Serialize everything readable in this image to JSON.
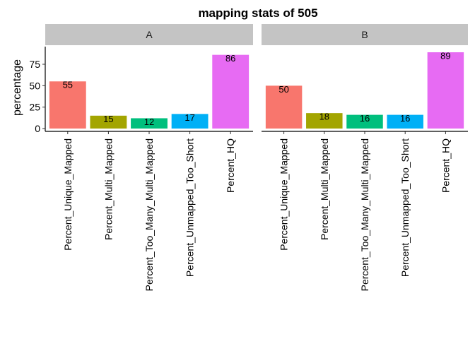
{
  "chart_data": {
    "type": "bar",
    "title": "mapping stats of 505",
    "xlabel": "",
    "ylabel": "percentage",
    "ylim": [
      0,
      89
    ],
    "yticks": [
      0,
      25,
      50,
      75
    ],
    "grid": false,
    "legend": "none",
    "categories": [
      "Percent_Unique_Mapped",
      "Percent_Multi_Mapped",
      "Percent_Too_Many_Multi_Mapped",
      "Percent_Unmapped_Too_Short",
      "Percent_HQ"
    ],
    "colors": [
      "#F8766D",
      "#A3A500",
      "#00BF7D",
      "#00B0F6",
      "#E76BF3"
    ],
    "panels": [
      {
        "label": "A",
        "values": [
          55,
          15,
          12,
          17,
          86
        ]
      },
      {
        "label": "B",
        "values": [
          50,
          18,
          16,
          16,
          89
        ]
      }
    ],
    "strip_color": "#c4c4c4"
  }
}
